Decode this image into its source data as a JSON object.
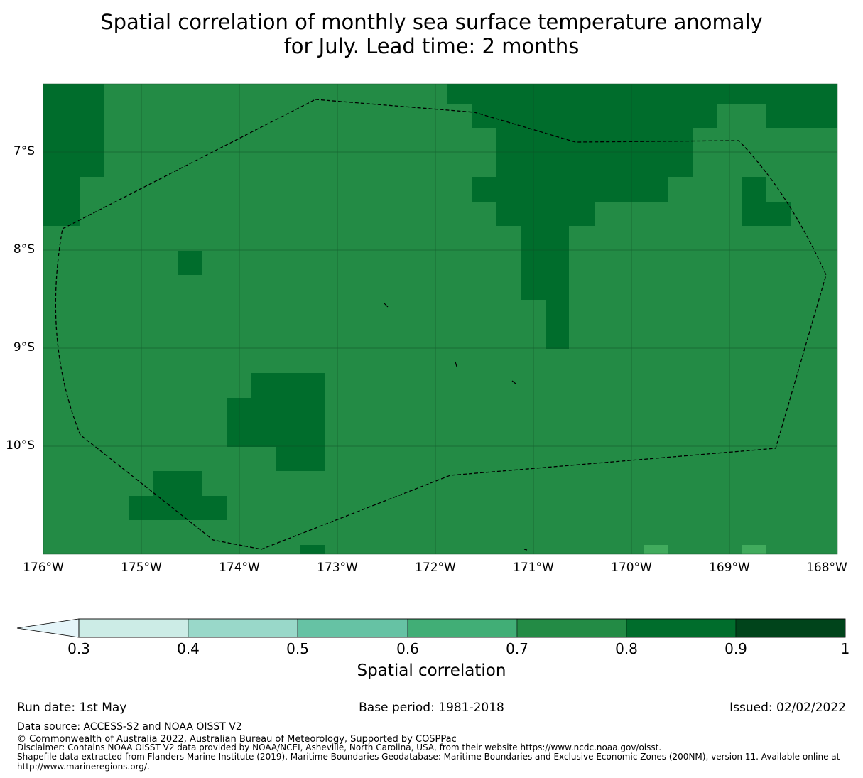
{
  "title": {
    "line1": "Spatial correlation of monthly sea surface temperature anomaly",
    "line2": "for July. Lead time: 2 months"
  },
  "map": {
    "lon_labels": [
      "176°W",
      "175°W",
      "174°W",
      "173°W",
      "172°W",
      "171°W",
      "170°W",
      "169°W",
      "168°W"
    ],
    "lat_labels": [
      "7°S",
      "8°S",
      "9°S",
      "10°S"
    ],
    "lon_range": [
      -176,
      -167.9
    ],
    "lat_range": [
      -11.2,
      -6.3
    ],
    "grid": true,
    "base_color": "#238b45",
    "colors": {
      "c_0_8_0_9": "#006d2c",
      "c_0_6_0_7": "#41ab5d",
      "boundary": "#000000"
    }
  },
  "colorbar": {
    "ticks": [
      "0.3",
      "0.4",
      "0.5",
      "0.6",
      "0.7",
      "0.8",
      "0.9",
      "1"
    ],
    "colors": [
      "#e5f5f9",
      "#ccece6",
      "#99d8c9",
      "#66c2a4",
      "#41ae76",
      "#238b45",
      "#006d2c",
      "#00441b"
    ],
    "label": "Spatial correlation"
  },
  "footer": {
    "run_date": "Run date: 1st May",
    "base_period": "Base period: 1981-2018",
    "issued": "Issued: 02/02/2022",
    "data_source": "Data source: ACCESS-S2 and NOAA OISST V2",
    "copyright": "© Commonwealth of Australia 2022, Australian Bureau of Meteorology, Supported by COSPPac",
    "disclaimer": "Disclaimer: Contains NOAA OISST V2 data provided by NOAA/NCEI, Asheville, North Carolina, USA, from their website https://www.ncdc.noaa.gov/oisst.",
    "shapefile_1": "Shapefile data extracted from Flanders Marine Institute (2019), Maritime Boundaries Geodatabase: Maritime Boundaries and Exclusive Economic Zones (200NM), version 11. Available online at",
    "shapefile_2": "http://www.marineregions.org/."
  }
}
